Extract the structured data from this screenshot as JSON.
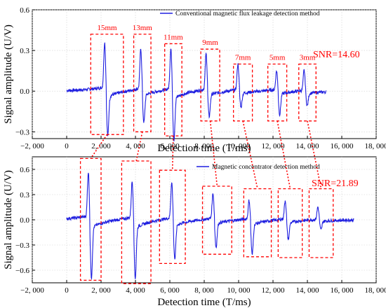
{
  "chart_data": [
    {
      "type": "line",
      "ylabel": "Signal amplitude (U/V)",
      "xlabel": "Detection time (T/ms)",
      "xlim": [
        -2000,
        18000
      ],
      "ylim": [
        -0.35,
        0.6
      ],
      "xticks": [
        -2000,
        0,
        2000,
        4000,
        6000,
        8000,
        10000,
        12000,
        14000,
        16000,
        18000
      ],
      "xtick_labels": [
        "−2, 000",
        "0",
        "2, 000",
        "4, 000",
        "6, 000",
        "8, 000",
        "10, 000",
        "12, 000",
        "14, 000",
        "16, 000",
        "18, 000"
      ],
      "yticks": [
        -0.3,
        0.0,
        0.3,
        0.6
      ],
      "ytick_labels": [
        "−0.3",
        "0.0",
        "0.3",
        "0.6"
      ],
      "grid": true,
      "legend_position": "top-right",
      "color": "#1f1fe0",
      "series": [
        {
          "name": "Conventional magnetic flux leakage detection method",
          "baseline_x": [
            0,
            15100
          ],
          "baseline_y": 0.0,
          "peaks": [
            {
              "x": 2300,
              "max": 0.33,
              "min": -0.29
            },
            {
              "x": 4400,
              "max": 0.29,
              "min": -0.2
            },
            {
              "x": 6150,
              "max": 0.3,
              "min": -0.31
            },
            {
              "x": 8200,
              "max": 0.26,
              "min": -0.16
            },
            {
              "x": 10050,
              "max": 0.19,
              "min": -0.1
            },
            {
              "x": 12300,
              "max": 0.14,
              "min": -0.15
            },
            {
              "x": 13900,
              "max": 0.15,
              "min": -0.09
            }
          ]
        }
      ],
      "annotations": [
        "15mm",
        "13mm",
        "11mm",
        "9mm",
        "7mm",
        "5mm",
        "3mm"
      ],
      "box_ranges": [
        {
          "x": [
            1400,
            3300
          ],
          "y": [
            -0.32,
            0.42
          ]
        },
        {
          "x": [
            3900,
            4900
          ],
          "y": [
            -0.3,
            0.42
          ]
        },
        {
          "x": [
            5700,
            6700
          ],
          "y": [
            -0.33,
            0.35
          ]
        },
        {
          "x": [
            7800,
            8900
          ],
          "y": [
            -0.22,
            0.31
          ]
        },
        {
          "x": [
            9700,
            10800
          ],
          "y": [
            -0.22,
            0.2
          ]
        },
        {
          "x": [
            11700,
            12800
          ],
          "y": [
            -0.22,
            0.2
          ]
        },
        {
          "x": [
            13500,
            14500
          ],
          "y": [
            -0.22,
            0.2
          ]
        }
      ],
      "snr_label": "SNR=14.60"
    },
    {
      "type": "line",
      "ylabel": "Signal amplitude (U/V)",
      "xlabel": "Detection time (T/ms)",
      "xlim": [
        -2000,
        18000
      ],
      "ylim": [
        -0.75,
        0.75
      ],
      "xticks": [
        -2000,
        0,
        2000,
        4000,
        6000,
        8000,
        10000,
        12000,
        14000,
        16000,
        18000
      ],
      "xtick_labels": [
        "−2, 000",
        "0",
        "2, 000",
        "4, 000",
        "6, 000",
        "8, 000",
        "10, 000",
        "12, 000",
        "14, 000",
        "16, 000",
        "18, 000"
      ],
      "yticks": [
        -0.6,
        -0.3,
        0.0,
        0.3,
        0.6
      ],
      "ytick_labels": [
        "−0.6",
        "−0.3",
        "0.0",
        "0.3",
        "0.6"
      ],
      "grid": true,
      "legend_position": "top-center",
      "color": "#1f1fe0",
      "series": [
        {
          "name": "Magnetic concentrator detection method",
          "baseline_x": [
            0,
            16700
          ],
          "baseline_y": 0.0,
          "peaks": [
            {
              "x": 1350,
              "max": 0.53,
              "min": -0.6
            },
            {
              "x": 3900,
              "max": 0.43,
              "min": -0.6
            },
            {
              "x": 6200,
              "max": 0.43,
              "min": -0.4
            },
            {
              "x": 8600,
              "max": 0.3,
              "min": -0.28
            },
            {
              "x": 10700,
              "max": 0.22,
              "min": -0.36
            },
            {
              "x": 12800,
              "max": 0.22,
              "min": -0.2
            },
            {
              "x": 14700,
              "max": 0.15,
              "min": -0.1
            }
          ]
        }
      ],
      "box_ranges": [
        {
          "x": [
            800,
            2000
          ],
          "y": [
            -0.72,
            0.73
          ]
        },
        {
          "x": [
            3200,
            4900
          ],
          "y": [
            -0.76,
            0.7
          ]
        },
        {
          "x": [
            5400,
            6900
          ],
          "y": [
            -0.52,
            0.59
          ]
        },
        {
          "x": [
            7900,
            9600
          ],
          "y": [
            -0.41,
            0.4
          ]
        },
        {
          "x": [
            10300,
            11900
          ],
          "y": [
            -0.44,
            0.37
          ]
        },
        {
          "x": [
            12300,
            13700
          ],
          "y": [
            -0.45,
            0.37
          ]
        },
        {
          "x": [
            14100,
            15500
          ],
          "y": [
            -0.45,
            0.37
          ]
        }
      ],
      "snr_label": "SNR=21.89"
    }
  ]
}
